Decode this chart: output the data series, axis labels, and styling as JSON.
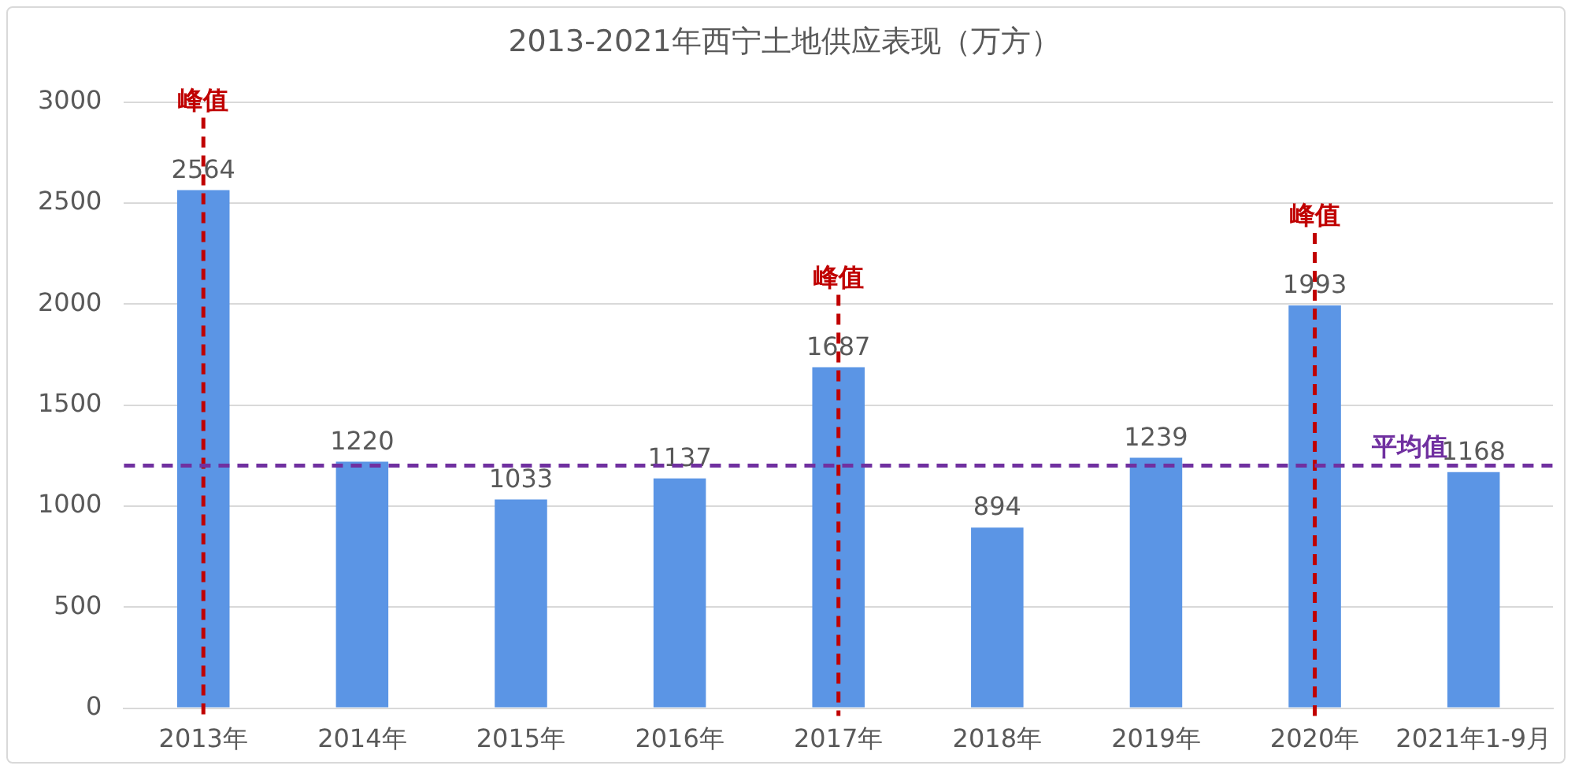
{
  "chart_data": {
    "type": "bar",
    "title": "2013-2021年西宁土地供应表现（万方）",
    "categories": [
      "2013年",
      "2014年",
      "2015年",
      "2016年",
      "2017年",
      "2018年",
      "2019年",
      "2020年",
      "2021年1-9月"
    ],
    "values": [
      2564,
      1220,
      1033,
      1137,
      1687,
      894,
      1239,
      1993,
      1168
    ],
    "color": "#5b95e5",
    "data_labels": true,
    "grid": "y",
    "legend": false,
    "ylim": [
      0,
      3000
    ],
    "yticks": [
      0,
      500,
      1000,
      1500,
      2000,
      2500,
      3000
    ],
    "ref_lines": [
      {
        "axis": "x",
        "value": "2013年",
        "label": "峰值",
        "color": "#c00000",
        "line_style": "dashed"
      },
      {
        "axis": "x",
        "value": "2017年",
        "label": "峰值",
        "color": "#c00000",
        "line_style": "dashed"
      },
      {
        "axis": "x",
        "value": "2020年",
        "label": "峰值",
        "color": "#c00000",
        "line_style": "dashed"
      },
      {
        "axis": "y",
        "value": 1200,
        "label": "平均值",
        "color": "#7030a0",
        "line_style": "dashed"
      }
    ]
  }
}
